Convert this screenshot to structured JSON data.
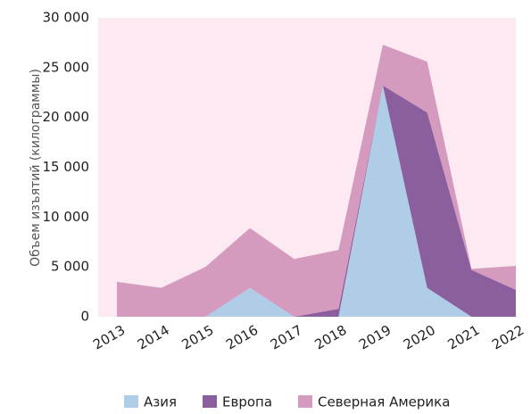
{
  "chart_data": {
    "type": "stacked_area",
    "y_label": "Объем изъятий (килограммы)",
    "categories": [
      "2013",
      "2014",
      "2015",
      "2016",
      "2017",
      "2018",
      "2019",
      "2020",
      "2021",
      "2022"
    ],
    "series": [
      {
        "name": "Азия",
        "color": "#b0cde8",
        "values": [
          0,
          0,
          0,
          2900,
          0,
          0,
          23200,
          2900,
          0,
          0
        ]
      },
      {
        "name": "Европа",
        "color": "#8b5e9e",
        "values": [
          0,
          0,
          0,
          0,
          0,
          800,
          0,
          17600,
          4700,
          2700
        ]
      },
      {
        "name": "Северная Америка",
        "color": "#d49bbf",
        "values": [
          3500,
          2900,
          5000,
          6000,
          5800,
          5900,
          4100,
          5100,
          100,
          2400
        ]
      }
    ],
    "ylim": [
      0,
      30000
    ],
    "yticks": [
      0,
      {
        "value": 5000,
        "label": "5 000"
      },
      {
        "value": 10000,
        "label": "10 000"
      },
      {
        "value": 15000,
        "label": "15 000"
      },
      {
        "value": 20000,
        "label": "20 000"
      },
      {
        "value": 25000,
        "label": "25 000"
      },
      {
        "value": 30000,
        "label": "30 000"
      }
    ],
    "background": "#fce9f2"
  }
}
